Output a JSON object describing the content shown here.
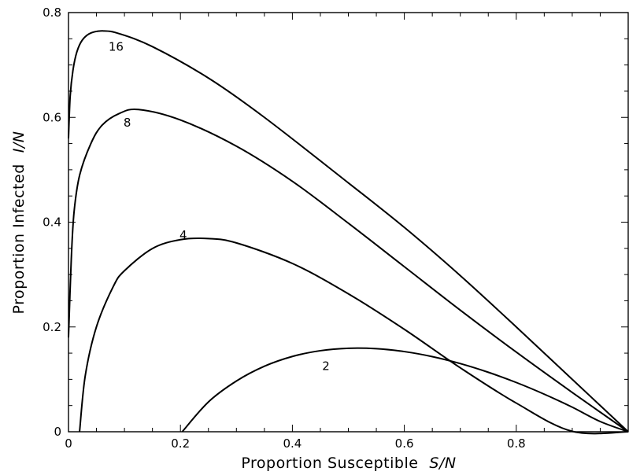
{
  "chart_data": {
    "type": "line",
    "title": "",
    "xlabel": "Proportion Susceptible",
    "xlabel_var": "S/N",
    "ylabel": "Proportion Infected",
    "ylabel_var": "I/N",
    "xlim": [
      0,
      1
    ],
    "ylim": [
      0,
      0.8
    ],
    "x_ticks": [
      0,
      0.2,
      0.4,
      0.6,
      0.8
    ],
    "x_tick_labels": [
      "0",
      "0.2",
      "0.4",
      "0.6",
      "0.8"
    ],
    "y_ticks": [
      0,
      0.2,
      0.4,
      0.6,
      0.8
    ],
    "y_tick_labels": [
      "0",
      "0.2",
      "0.4",
      "0.6",
      "0.8"
    ],
    "grid": false,
    "legend": "none",
    "series": [
      {
        "name": "2",
        "label_at": [
          0.46,
          0.125
        ],
        "x": [
          0.2032,
          0.25,
          0.3,
          0.35,
          0.4,
          0.45,
          0.5,
          0.55,
          0.6,
          0.65,
          0.7,
          0.75,
          0.8,
          0.85,
          0.9,
          0.95,
          1.0
        ],
        "y": [
          0.0,
          0.0569,
          0.0968,
          0.125,
          0.1437,
          0.1547,
          0.1593,
          0.1585,
          0.153,
          0.1434,
          0.1301,
          0.1135,
          0.094,
          0.0717,
          0.0469,
          0.0195,
          0.0
        ]
      },
      {
        "name": "4",
        "label_at": [
          0.205,
          0.375
        ],
        "x": [
          0.0198,
          0.03,
          0.05,
          0.08,
          0.1,
          0.15,
          0.2,
          0.25,
          0.3,
          0.4,
          0.5,
          0.6,
          0.7,
          0.8,
          0.9,
          1.0
        ],
        "y": [
          0.0,
          0.1073,
          0.2004,
          0.2772,
          0.3073,
          0.3498,
          0.3666,
          0.3686,
          0.3604,
          0.3212,
          0.2633,
          0.1955,
          0.122,
          0.0547,
          0.0007,
          0.0
        ]
      },
      {
        "name": "8",
        "label_at": [
          0.105,
          0.59
        ],
        "x": [
          0.0,
          0.005,
          0.01,
          0.02,
          0.04,
          0.06,
          0.09,
          0.125,
          0.2,
          0.3,
          0.4,
          0.5,
          0.6,
          0.7,
          0.8,
          0.9,
          1.0
        ],
        "y": [
          0.18,
          0.33,
          0.42,
          0.49,
          0.55,
          0.585,
          0.607,
          0.615,
          0.595,
          0.545,
          0.478,
          0.398,
          0.315,
          0.232,
          0.152,
          0.075,
          0.0
        ]
      },
      {
        "name": "16",
        "label_at": [
          0.085,
          0.735
        ],
        "x": [
          0.0,
          0.003,
          0.008,
          0.015,
          0.025,
          0.04,
          0.0625,
          0.09,
          0.15,
          0.25,
          0.35,
          0.5,
          0.6,
          0.7,
          0.8,
          0.9,
          1.0
        ],
        "y": [
          0.56,
          0.64,
          0.69,
          0.725,
          0.748,
          0.761,
          0.765,
          0.76,
          0.735,
          0.675,
          0.6,
          0.475,
          0.39,
          0.298,
          0.2,
          0.1,
          0.0
        ]
      }
    ]
  }
}
